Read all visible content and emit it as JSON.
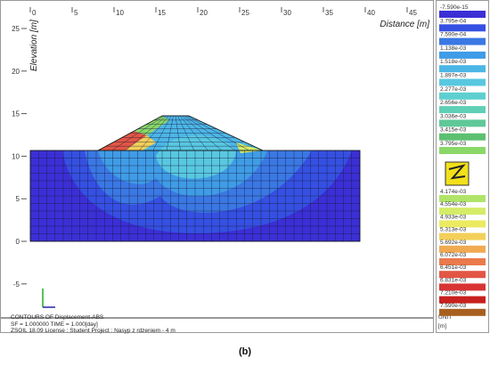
{
  "plot": {
    "x_label": "Distance [m]",
    "y_label": "Elevation [m]",
    "xticks": [
      0,
      5,
      10,
      15,
      20,
      25,
      30,
      35,
      40,
      45
    ],
    "yticks": [
      25,
      20,
      15,
      10,
      5,
      0,
      -5
    ]
  },
  "legend": {
    "levels": [
      {
        "label": "-7.590e-15",
        "color": "#3b2fd6"
      },
      {
        "label": "3.795e-04",
        "color": "#3550e2"
      },
      {
        "label": "7.590e-04",
        "color": "#3a78e4"
      },
      {
        "label": "1.138e-03",
        "color": "#3f9ce6"
      },
      {
        "label": "1.518e-03",
        "color": "#4cb6e6"
      },
      {
        "label": "1.897e-03",
        "color": "#58c8e0"
      },
      {
        "label": "2.277e-03",
        "color": "#5ecfd0"
      },
      {
        "label": "2.656e-03",
        "color": "#5fcfb6"
      },
      {
        "label": "3.036e-03",
        "color": "#60c898"
      },
      {
        "label": "3.415e-03",
        "color": "#5cc070"
      },
      {
        "label": "3.795e-03",
        "color": "#8ad868"
      },
      {
        "label": "4.174e-03",
        "color": "#b0e468"
      },
      {
        "label": "4.554e-03",
        "color": "#d4ec66"
      },
      {
        "label": "4.933e-03",
        "color": "#ecea60"
      },
      {
        "label": "5.313e-03",
        "color": "#f2d05a"
      },
      {
        "label": "5.692e-03",
        "color": "#f0aa52"
      },
      {
        "label": "6.072e-03",
        "color": "#ea7a4c"
      },
      {
        "label": "6.451e-03",
        "color": "#e25644"
      },
      {
        "label": "6.831e-03",
        "color": "#d83434"
      },
      {
        "label": "7.210e-03",
        "color": "#c8201e"
      },
      {
        "label": "7.590e-03",
        "color": "#a86020"
      }
    ],
    "unit_title": "UNIT",
    "unit": "[m]"
  },
  "footer": {
    "line1": "CONTOURS OF  Displacement-ABS",
    "line2": "SF = 1.000000  TIME = 1.000[day]",
    "line3": "ZSOIL 18.09   License : Student   Project : Nasyp z rdzeniem - 4 m"
  },
  "caption": "(b)"
}
